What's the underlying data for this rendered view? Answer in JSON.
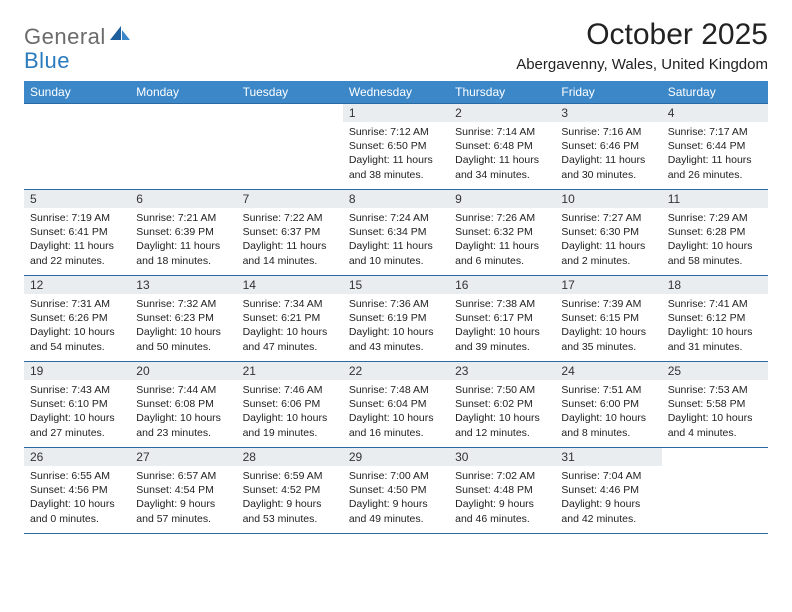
{
  "brand": {
    "part1": "General",
    "part2": "Blue"
  },
  "title": "October 2025",
  "location": "Abergavenny, Wales, United Kingdom",
  "colors": {
    "header_bg": "#3b87c8",
    "header_text": "#ffffff",
    "daynum_bg": "#e9edf0",
    "border": "#2a6aa0",
    "logo_gray": "#6b6b6b",
    "logo_blue": "#2b7bbf"
  },
  "weekdays": [
    "Sunday",
    "Monday",
    "Tuesday",
    "Wednesday",
    "Thursday",
    "Friday",
    "Saturday"
  ],
  "weeks": [
    [
      null,
      null,
      null,
      {
        "n": "1",
        "sr": "7:12 AM",
        "ss": "6:50 PM",
        "dh": "11",
        "dm": "38"
      },
      {
        "n": "2",
        "sr": "7:14 AM",
        "ss": "6:48 PM",
        "dh": "11",
        "dm": "34"
      },
      {
        "n": "3",
        "sr": "7:16 AM",
        "ss": "6:46 PM",
        "dh": "11",
        "dm": "30"
      },
      {
        "n": "4",
        "sr": "7:17 AM",
        "ss": "6:44 PM",
        "dh": "11",
        "dm": "26"
      }
    ],
    [
      {
        "n": "5",
        "sr": "7:19 AM",
        "ss": "6:41 PM",
        "dh": "11",
        "dm": "22"
      },
      {
        "n": "6",
        "sr": "7:21 AM",
        "ss": "6:39 PM",
        "dh": "11",
        "dm": "18"
      },
      {
        "n": "7",
        "sr": "7:22 AM",
        "ss": "6:37 PM",
        "dh": "11",
        "dm": "14"
      },
      {
        "n": "8",
        "sr": "7:24 AM",
        "ss": "6:34 PM",
        "dh": "11",
        "dm": "10"
      },
      {
        "n": "9",
        "sr": "7:26 AM",
        "ss": "6:32 PM",
        "dh": "11",
        "dm": "6"
      },
      {
        "n": "10",
        "sr": "7:27 AM",
        "ss": "6:30 PM",
        "dh": "11",
        "dm": "2"
      },
      {
        "n": "11",
        "sr": "7:29 AM",
        "ss": "6:28 PM",
        "dh": "10",
        "dm": "58"
      }
    ],
    [
      {
        "n": "12",
        "sr": "7:31 AM",
        "ss": "6:26 PM",
        "dh": "10",
        "dm": "54"
      },
      {
        "n": "13",
        "sr": "7:32 AM",
        "ss": "6:23 PM",
        "dh": "10",
        "dm": "50"
      },
      {
        "n": "14",
        "sr": "7:34 AM",
        "ss": "6:21 PM",
        "dh": "10",
        "dm": "47"
      },
      {
        "n": "15",
        "sr": "7:36 AM",
        "ss": "6:19 PM",
        "dh": "10",
        "dm": "43"
      },
      {
        "n": "16",
        "sr": "7:38 AM",
        "ss": "6:17 PM",
        "dh": "10",
        "dm": "39"
      },
      {
        "n": "17",
        "sr": "7:39 AM",
        "ss": "6:15 PM",
        "dh": "10",
        "dm": "35"
      },
      {
        "n": "18",
        "sr": "7:41 AM",
        "ss": "6:12 PM",
        "dh": "10",
        "dm": "31"
      }
    ],
    [
      {
        "n": "19",
        "sr": "7:43 AM",
        "ss": "6:10 PM",
        "dh": "10",
        "dm": "27"
      },
      {
        "n": "20",
        "sr": "7:44 AM",
        "ss": "6:08 PM",
        "dh": "10",
        "dm": "23"
      },
      {
        "n": "21",
        "sr": "7:46 AM",
        "ss": "6:06 PM",
        "dh": "10",
        "dm": "19"
      },
      {
        "n": "22",
        "sr": "7:48 AM",
        "ss": "6:04 PM",
        "dh": "10",
        "dm": "16"
      },
      {
        "n": "23",
        "sr": "7:50 AM",
        "ss": "6:02 PM",
        "dh": "10",
        "dm": "12"
      },
      {
        "n": "24",
        "sr": "7:51 AM",
        "ss": "6:00 PM",
        "dh": "10",
        "dm": "8"
      },
      {
        "n": "25",
        "sr": "7:53 AM",
        "ss": "5:58 PM",
        "dh": "10",
        "dm": "4"
      }
    ],
    [
      {
        "n": "26",
        "sr": "6:55 AM",
        "ss": "4:56 PM",
        "dh": "10",
        "dm": "0"
      },
      {
        "n": "27",
        "sr": "6:57 AM",
        "ss": "4:54 PM",
        "dh": "9",
        "dm": "57"
      },
      {
        "n": "28",
        "sr": "6:59 AM",
        "ss": "4:52 PM",
        "dh": "9",
        "dm": "53"
      },
      {
        "n": "29",
        "sr": "7:00 AM",
        "ss": "4:50 PM",
        "dh": "9",
        "dm": "49"
      },
      {
        "n": "30",
        "sr": "7:02 AM",
        "ss": "4:48 PM",
        "dh": "9",
        "dm": "46"
      },
      {
        "n": "31",
        "sr": "7:04 AM",
        "ss": "4:46 PM",
        "dh": "9",
        "dm": "42"
      },
      null
    ]
  ]
}
